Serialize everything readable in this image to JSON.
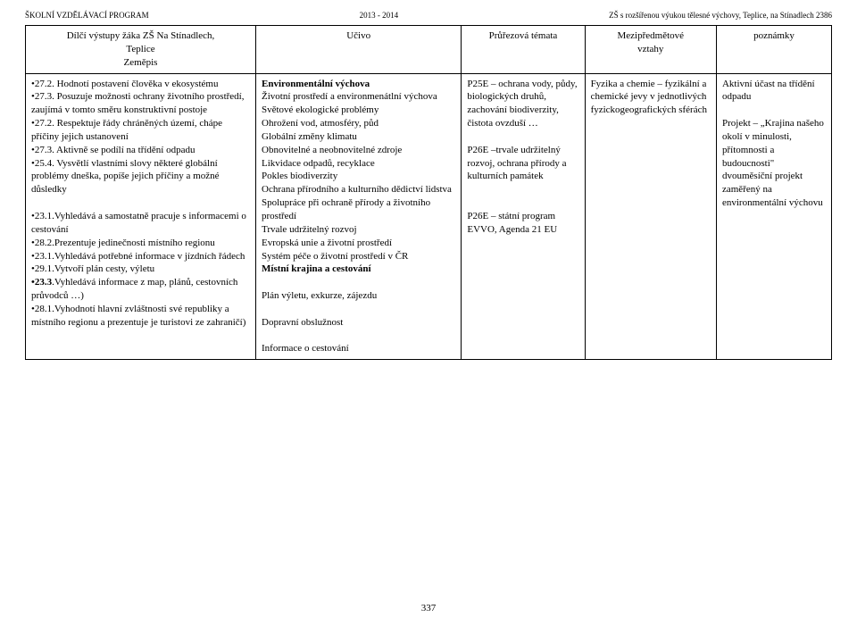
{
  "header": {
    "left": "ŠKOLNÍ VZDĚLÁVACÍ PROGRAM",
    "center": "2013 - 2014",
    "right": "ZŠ s rozšířenou výukou tělesné výchovy, Teplice, na Stínadlech 2386"
  },
  "table": {
    "head": {
      "col1_l1": "Dílčí výstupy žáka ZŠ Na Stínadlech,",
      "col1_l2": "Teplice",
      "col1_l3": "Zeměpis",
      "col2": "Učivo",
      "col3": "Průřezová témata",
      "col4_l1": "Mezipředmětové",
      "col4_l2": "vztahy",
      "col5": "poznámky"
    },
    "row": {
      "c1": {
        "b1": "•27.2. Hodnotí postavení člověka v ekosystému",
        "b2": "•27.3. Posuzuje možnosti ochrany životního prostředí, zaujímá v tomto směru konstruktivní postoje",
        "b3": "•27.2. Respektuje řády chráněných území, chápe příčiny jejich ustanovení",
        "b4": "•27.3. Aktivně se podílí na třídění odpadu",
        "b5": "•25.4. Vysvětlí vlastními slovy některé globální problémy dneška, popíše jejich příčiny a možné důsledky",
        "b6": "•23.1.Vyhledává a samostatně pracuje s informacemi o cestování",
        "b7": "•28.2.Prezentuje jedinečnosti místního regionu",
        "b8": "•23.1.Vyhledává potřebné informace v jízdních řádech",
        "b9": "•29.1.Vytvoří plán cesty, výletu",
        "b10a": "•23.3",
        "b10b": ".Vyhledává informace z map, plánů, cestovních průvodců …)",
        "b11": "•28.1.Vyhodnotí hlavní zvláštnosti své republiky a místního regionu a prezentuje je turistovi ze zahraničí)"
      },
      "c2": {
        "h1": "Environmentální výchova",
        "l1": "Životní prostředí a environmenátlní výchova",
        "l2": "Světové ekologické problémy",
        "l3": "Ohrožení vod, atmosféry, půd",
        "l4": "Globální změny klimatu",
        "l5": "Obnovitelné a neobnovitelné zdroje",
        "l6": "Likvidace odpadů, recyklace",
        "l7": "Pokles biodiverzity",
        "l8": "Ochrana přírodního a kulturního dědictví lidstva",
        "l9": "Spolupráce při ochraně přírody a životního prostředí",
        "l10": "Trvale udržitelný rozvoj",
        "l11": "Evropská unie a životní prostředí",
        "l12": "Systém péče o životní prostředí v ČR",
        "h2": "Místní krajina a cestování",
        "l13": "Plán výletu, exkurze, zájezdu",
        "l14": "Dopravní obslužnost",
        "l15": "Informace o cestování"
      },
      "c3": {
        "l1": "P25E – ochrana vody, půdy, biologických druhů, zachování biodiverzity, čistota ovzduší …",
        "l2": "P26E –trvale udržitelný rozvoj, ochrana přírody a kulturních památek",
        "l3": "P26E – státní program EVVO, Agenda 21 EU"
      },
      "c4": {
        "l1": "Fyzika a chemie – fyzikální a chemické jevy v jednotlivých fyzickogeografických sférách"
      },
      "c5": {
        "l1": "Aktivní účast na třídění odpadu",
        "l2": "Projekt – „Krajina našeho okolí v minulosti, přítomnosti a budoucnosti\" dvouměsíční projekt zaměřený na environmentální výchovu"
      }
    }
  },
  "pagenum": "337"
}
